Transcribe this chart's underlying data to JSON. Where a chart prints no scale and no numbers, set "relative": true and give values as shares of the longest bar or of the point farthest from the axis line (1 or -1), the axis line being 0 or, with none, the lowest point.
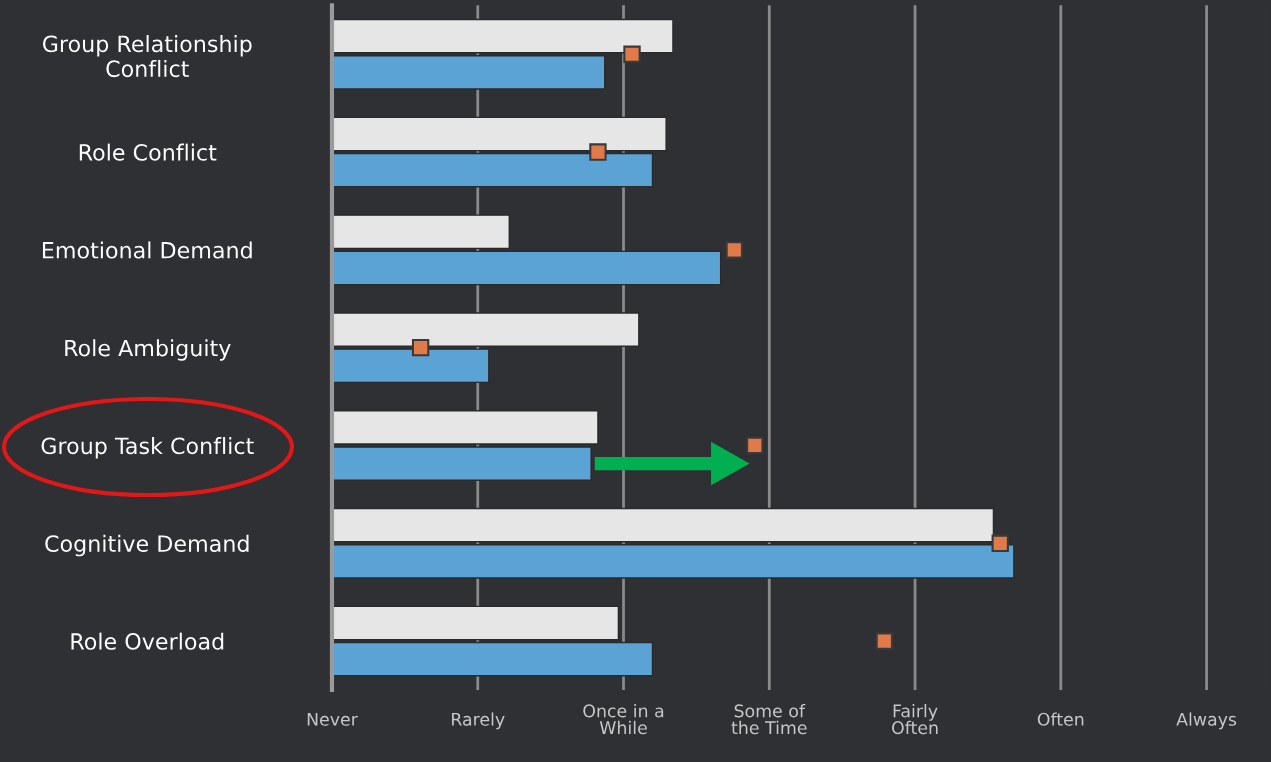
{
  "chart_data": {
    "type": "bar",
    "orientation": "horizontal",
    "relative": true,
    "categories": [
      "Group Relationship\nConflict",
      "Role Conflict",
      "Emotional Demand",
      "Role Ambiguity",
      "Group Task Conflict",
      "Cognitive Demand",
      "Role Overload"
    ],
    "series": [
      {
        "color": "#e6e6e6",
        "values": [
          0.5,
          0.49,
          0.26,
          0.45,
          0.39,
          0.97,
          0.42
        ]
      },
      {
        "color": "#5ba3d4",
        "values": [
          0.4,
          0.47,
          0.57,
          0.23,
          0.38,
          1.0,
          0.47
        ]
      },
      {
        "type": "scatter",
        "marker": "square",
        "color": "#e07a4a",
        "values": [
          0.44,
          0.39,
          0.59,
          0.13,
          0.62,
          0.98,
          0.81
        ]
      }
    ],
    "annotations": [
      "Never",
      "Rarely",
      "Once in a\nWhile",
      "Some of\nthe Time",
      "Fairly\nOften",
      "Often",
      "Always"
    ]
  }
}
